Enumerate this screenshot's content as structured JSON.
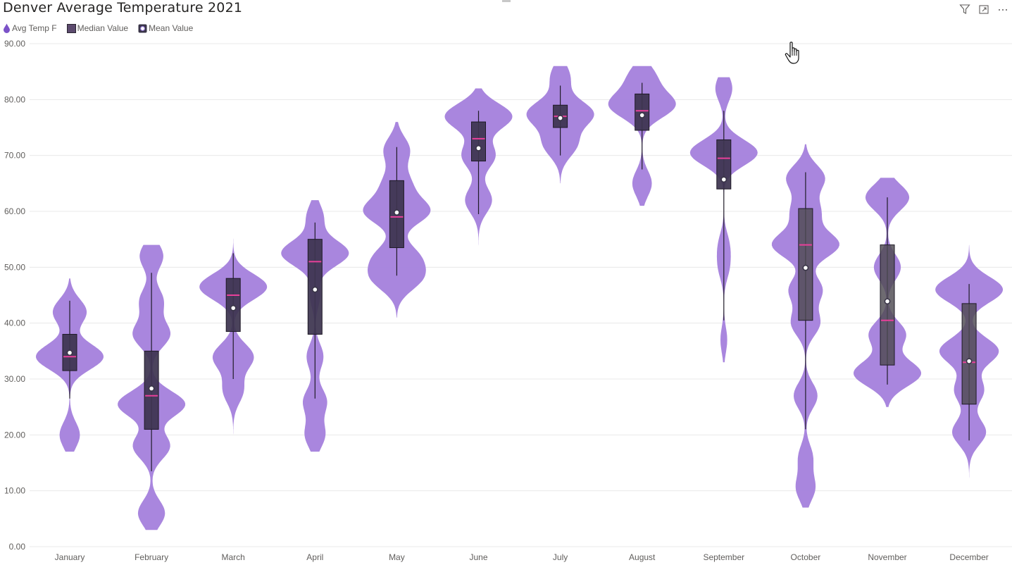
{
  "header": {
    "title": "Denver Average Temperature 2021"
  },
  "toolbar": {
    "icons": [
      "filter-icon",
      "focus-mode-icon",
      "more-options-icon"
    ]
  },
  "legend": {
    "items": [
      {
        "label": "Avg Temp F",
        "icon": "violin-droplet-icon",
        "color": "#7b52c8"
      },
      {
        "label": "Median Value",
        "icon": "box-square-icon",
        "color": "#5c4a6e"
      },
      {
        "label": "Mean Value",
        "icon": "mean-circle-icon",
        "color": "#3a3548"
      }
    ]
  },
  "colors": {
    "violin": "#a47fdc",
    "box": "#3d3550",
    "box_alt": "#4e4a52",
    "median": "#e8409a",
    "mean_fill": "#ffffff",
    "mean_stroke": "#3a3548",
    "whisker": "#201c28",
    "grid": "#e8e8e8",
    "axis_text": "#605e5c"
  },
  "chart_data": {
    "type": "violin",
    "title": "Denver Average Temperature 2021",
    "series_name": "Avg Temp F",
    "y_range": [
      0,
      90
    ],
    "y_ticks": [
      "0.00",
      "10.00",
      "20.00",
      "30.00",
      "40.00",
      "50.00",
      "60.00",
      "70.00",
      "80.00",
      "90.00"
    ],
    "grid": true,
    "legend_position": "top-left",
    "categories": [
      "January",
      "February",
      "March",
      "April",
      "May",
      "June",
      "July",
      "August",
      "September",
      "October",
      "November",
      "December"
    ],
    "stats": [
      {
        "month": "January",
        "min": 26.5,
        "q1": 31.5,
        "median": 34.0,
        "mean": 34.7,
        "q3": 38.0,
        "max": 44.0,
        "range": [
          17.0,
          48.0
        ]
      },
      {
        "month": "February",
        "min": 13.5,
        "q1": 21.0,
        "median": 27.0,
        "mean": 28.3,
        "q3": 35.0,
        "max": 49.0,
        "range": [
          3.0,
          54.0
        ]
      },
      {
        "month": "March",
        "min": 30.0,
        "q1": 38.5,
        "median": 45.0,
        "mean": 42.7,
        "q3": 48.0,
        "max": 52.5,
        "range": [
          19.0,
          56.0
        ]
      },
      {
        "month": "April",
        "min": 26.5,
        "q1": 38.0,
        "median": 51.0,
        "mean": 46.0,
        "q3": 55.0,
        "max": 58.0,
        "range": [
          17.0,
          62.0
        ]
      },
      {
        "month": "May",
        "min": 48.5,
        "q1": 53.5,
        "median": 59.0,
        "mean": 59.8,
        "q3": 65.5,
        "max": 71.5,
        "range": [
          41.0,
          76.0
        ]
      },
      {
        "month": "June",
        "min": 59.5,
        "q1": 69.0,
        "median": 73.0,
        "mean": 71.3,
        "q3": 76.0,
        "max": 78.0,
        "range": [
          51.0,
          82.0
        ]
      },
      {
        "month": "July",
        "min": 70.0,
        "q1": 75.0,
        "median": 77.0,
        "mean": 76.7,
        "q3": 79.0,
        "max": 82.5,
        "range": [
          65.0,
          86.0
        ]
      },
      {
        "month": "August",
        "min": 67.5,
        "q1": 74.5,
        "median": 78.0,
        "mean": 77.2,
        "q3": 81.0,
        "max": 83.0,
        "range": [
          61.0,
          86.0
        ]
      },
      {
        "month": "September",
        "min": 40.5,
        "q1": 64.0,
        "median": 69.5,
        "mean": 65.7,
        "q3": 72.8,
        "max": 78.0,
        "range": [
          33.0,
          84.0
        ]
      },
      {
        "month": "October",
        "min": 21.0,
        "q1": 40.5,
        "median": 54.0,
        "mean": 49.9,
        "q3": 60.5,
        "max": 67.0,
        "range": [
          7.0,
          72.0
        ]
      },
      {
        "month": "November",
        "min": 29.0,
        "q1": 32.5,
        "median": 40.5,
        "mean": 43.9,
        "q3": 54.0,
        "max": 62.5,
        "range": [
          25.0,
          66.0
        ]
      },
      {
        "month": "December",
        "min": 19.0,
        "q1": 25.5,
        "median": 33.0,
        "mean": 33.2,
        "q3": 43.5,
        "max": 47.0,
        "range": [
          11.0,
          54.0
        ]
      }
    ],
    "density_modes": [
      [
        [
          20,
          0.3
        ],
        [
          34,
          1.0
        ],
        [
          42,
          0.5
        ]
      ],
      [
        [
          6,
          0.4
        ],
        [
          18,
          0.55
        ],
        [
          25.5,
          1.0
        ],
        [
          38,
          0.55
        ],
        [
          44,
          0.35
        ],
        [
          52,
          0.35
        ]
      ],
      [
        [
          28,
          0.3
        ],
        [
          34,
          0.6
        ],
        [
          46.5,
          1.0
        ]
      ],
      [
        [
          20,
          0.3
        ],
        [
          26,
          0.35
        ],
        [
          34,
          0.25
        ],
        [
          45,
          0.15
        ],
        [
          52.5,
          1.0
        ],
        [
          59,
          0.25
        ]
      ],
      [
        [
          48,
          0.7
        ],
        [
          52,
          0.6
        ],
        [
          60,
          1.0
        ],
        [
          65,
          0.4
        ],
        [
          71,
          0.4
        ]
      ],
      [
        [
          62,
          0.4
        ],
        [
          70,
          0.5
        ],
        [
          77,
          1.0
        ]
      ],
      [
        [
          72,
          0.5
        ],
        [
          77.5,
          1.0
        ],
        [
          84,
          0.3
        ]
      ],
      [
        [
          65,
          0.3
        ],
        [
          79,
          1.0
        ],
        [
          84,
          0.4
        ]
      ],
      [
        [
          37,
          0.1
        ],
        [
          50,
          0.15
        ],
        [
          54,
          0.15
        ],
        [
          70.5,
          1.0
        ],
        [
          82,
          0.25
        ]
      ],
      [
        [
          10.5,
          0.2
        ],
        [
          16,
          0.15
        ],
        [
          27,
          0.25
        ],
        [
          40,
          0.3
        ],
        [
          46,
          0.35
        ],
        [
          54,
          0.7
        ],
        [
          60,
          0.3
        ],
        [
          66,
          0.4
        ]
      ],
      [
        [
          31,
          1.0
        ],
        [
          38,
          0.55
        ],
        [
          50,
          0.4
        ],
        [
          62.5,
          0.65
        ]
      ],
      [
        [
          20.5,
          0.4
        ],
        [
          28,
          0.35
        ],
        [
          35,
          0.7
        ],
        [
          46,
          0.8
        ]
      ]
    ]
  }
}
